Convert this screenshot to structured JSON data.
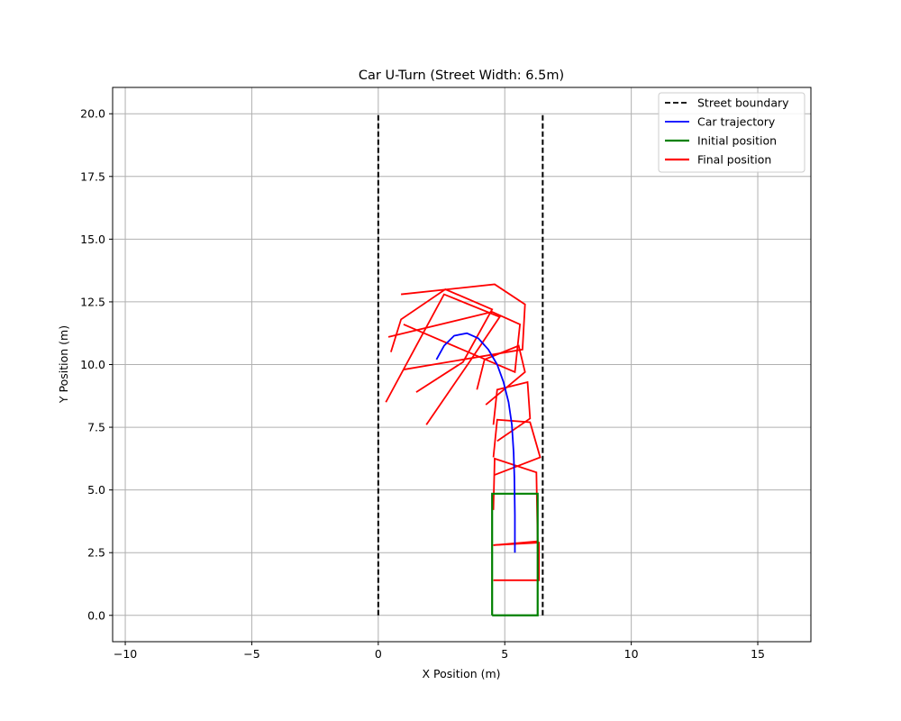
{
  "chart_data": {
    "type": "line",
    "title": "Car U-Turn (Street Width: 6.5m)",
    "xlabel": "X Position (m)",
    "ylabel": "Y Position (m)",
    "xlim": [
      -10.5,
      17.1
    ],
    "ylim": [
      -1.05,
      21.05
    ],
    "xticks": [
      -10,
      -5,
      0,
      5,
      10,
      15
    ],
    "yticks": [
      0.0,
      2.5,
      5.0,
      7.5,
      10.0,
      12.5,
      15.0,
      17.5,
      20.0
    ],
    "xtick_labels": [
      "−10",
      "−5",
      "0",
      "5",
      "10",
      "15"
    ],
    "ytick_labels": [
      "0.0",
      "2.5",
      "5.0",
      "7.5",
      "10.0",
      "12.5",
      "15.0",
      "17.5",
      "20.0"
    ],
    "grid": true,
    "legend_position": "top-right",
    "colors": {
      "boundary": "#000000",
      "trajectory": "#0000ff",
      "initial": "#008000",
      "final": "#ff0000",
      "grid": "#b0b0b0"
    },
    "legend": [
      {
        "label": "Street boundary",
        "style": "dashed",
        "color": "#000000"
      },
      {
        "label": "Car trajectory",
        "style": "solid",
        "color": "#0000ff"
      },
      {
        "label": "Initial position",
        "style": "solid-thick",
        "color": "#008000"
      },
      {
        "label": "Final position",
        "style": "solid-thick",
        "color": "#ff0000"
      }
    ],
    "street_boundaries": [
      {
        "x": [
          0,
          0
        ],
        "y": [
          0,
          20
        ]
      },
      {
        "x": [
          6.5,
          6.5
        ],
        "y": [
          0,
          20
        ]
      }
    ],
    "trajectory": {
      "x": [
        5.4,
        5.4,
        5.38,
        5.35,
        5.28,
        5.15,
        4.95,
        4.7,
        4.35,
        3.95,
        3.5,
        3.0,
        2.6,
        2.3
      ],
      "y": [
        2.5,
        4.0,
        5.5,
        6.5,
        7.6,
        8.5,
        9.3,
        10.0,
        10.6,
        11.05,
        11.25,
        11.15,
        10.75,
        10.2
      ]
    },
    "initial_position": {
      "x": [
        4.5,
        6.3,
        6.3,
        4.5,
        4.5
      ],
      "y": [
        0,
        0,
        4.85,
        4.85,
        0
      ]
    },
    "final_positions": [
      {
        "x": [
          4.55,
          6.35,
          6.35,
          4.55
        ],
        "y": [
          1.4,
          1.4,
          2.9,
          2.8
        ]
      },
      {
        "x": [
          4.55,
          6.3,
          6.25,
          4.6,
          4.55
        ],
        "y": [
          2.8,
          2.95,
          5.7,
          6.25,
          4.2
        ]
      },
      {
        "x": [
          4.6,
          6.4,
          6.0,
          4.7,
          4.55
        ],
        "y": [
          5.6,
          6.3,
          7.7,
          7.8,
          6.3
        ]
      },
      {
        "x": [
          4.7,
          6.0,
          5.9,
          4.7,
          4.55
        ],
        "y": [
          6.95,
          7.85,
          9.3,
          9.0,
          7.6
        ]
      },
      {
        "x": [
          4.25,
          5.8,
          5.55,
          4.2,
          3.9
        ],
        "y": [
          8.4,
          9.7,
          10.75,
          10.2,
          9.0
        ]
      },
      {
        "x": [
          1.9,
          3.6,
          4.8,
          2.6,
          0.3
        ],
        "y": [
          7.6,
          10.1,
          11.9,
          12.8,
          8.5
        ]
      },
      {
        "x": [
          1.5,
          3.35,
          4.5,
          2.65,
          0.9,
          0.5
        ],
        "y": [
          8.9,
          10.1,
          12.2,
          13.0,
          11.8,
          10.5
        ]
      },
      {
        "x": [
          1.0,
          5.7,
          5.8,
          4.6,
          0.9
        ],
        "y": [
          9.8,
          10.6,
          12.4,
          13.2,
          12.8
        ]
      },
      {
        "x": [
          0.4,
          4.5,
          5.6,
          5.4,
          1.0
        ],
        "y": [
          11.1,
          12.1,
          11.6,
          9.7,
          11.6
        ]
      }
    ]
  }
}
